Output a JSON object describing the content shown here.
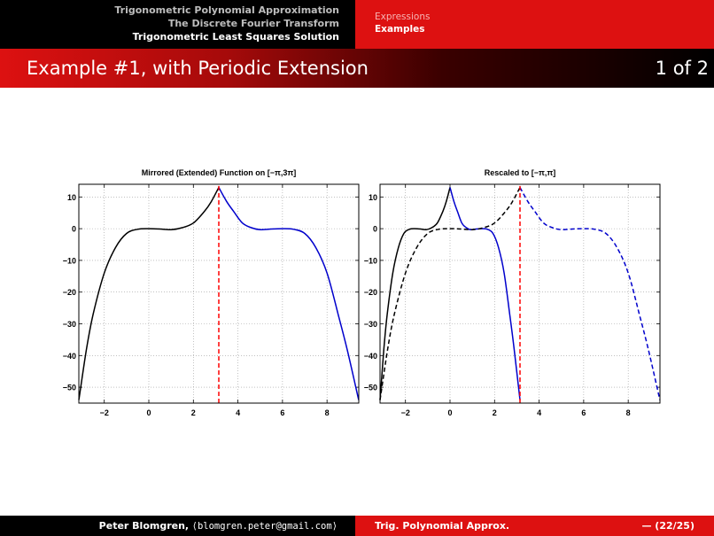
{
  "header": {
    "sections": [
      {
        "label": "Trigonometric Polynomial Approximation",
        "active": false
      },
      {
        "label": "The Discrete Fourier Transform",
        "active": false
      },
      {
        "label": "Trigonometric Least Squares Solution",
        "active": true
      }
    ],
    "subsections": [
      {
        "label": "Expressions",
        "active": false
      },
      {
        "label": "Examples",
        "active": true
      }
    ]
  },
  "frame": {
    "title": "Example #1, with Periodic Extension",
    "page": "1 of 2"
  },
  "footer": {
    "author_name": "Peter Blomgren,",
    "author_email": "⟨blomgren.peter@gmail.com⟩",
    "short_title": "Trig. Polynomial Approx.",
    "slide_number": "— (22/25)"
  },
  "colors": {
    "theme_red": "#dd1111",
    "curve_black": "#000000",
    "curve_blue": "#0000cc",
    "marker_red": "#ff0000"
  },
  "chart_data": [
    {
      "type": "line",
      "title": "Mirrored (Extended) Function on [−π,3π]",
      "xlim": [
        -3.1416,
        9.4248
      ],
      "ylim": [
        -55,
        14
      ],
      "xticks": [
        -2,
        0,
        2,
        4,
        6,
        8
      ],
      "yticks": [
        10,
        0,
        -10,
        -20,
        -30,
        -40,
        -50
      ],
      "xticklabels": [
        "−2",
        "0",
        "2",
        "4",
        "6",
        "8"
      ],
      "yticklabels": [
        "10",
        "0",
        "−10",
        "−20",
        "−30",
        "−40",
        "−50"
      ],
      "grid": true,
      "series": [
        {
          "color": "#000000",
          "style": "solid",
          "x": [
            -3.14,
            -2.8,
            -2.5,
            -2.0,
            -1.5,
            -1.0,
            -0.5,
            0,
            0.5,
            1.0,
            1.5,
            2.0,
            2.5,
            2.8,
            3.14
          ],
          "y": [
            -54,
            -38,
            -27,
            -14,
            -6,
            -1.5,
            -0.2,
            0,
            -0.1,
            -0.3,
            0.3,
            1.8,
            5.5,
            8.5,
            13
          ]
        },
        {
          "color": "#0000cc",
          "style": "solid",
          "x": [
            3.14,
            3.5,
            3.8,
            4.2,
            4.6,
            5.0,
            5.5,
            6.0,
            6.5,
            7.0,
            7.5,
            8.0,
            8.5,
            8.9,
            9.42
          ],
          "y": [
            13,
            8.5,
            5.5,
            1.8,
            0.3,
            -0.3,
            -0.1,
            0,
            -0.2,
            -1.5,
            -6,
            -14,
            -27,
            -38,
            -54
          ]
        },
        {
          "color": "#ff0000",
          "style": "dashed",
          "x": [
            3.14,
            3.14
          ],
          "y": [
            -55,
            14
          ]
        }
      ]
    },
    {
      "type": "line",
      "title": "Rescaled to [−π,π]",
      "xlim": [
        -3.1416,
        9.4248
      ],
      "ylim": [
        -55,
        14
      ],
      "xticks": [
        -2,
        0,
        2,
        4,
        6,
        8
      ],
      "yticks": [
        10,
        0,
        -10,
        -20,
        -30,
        -40,
        -50
      ],
      "xticklabels": [
        "−2",
        "0",
        "2",
        "4",
        "6",
        "8"
      ],
      "yticklabels": [
        "10",
        "0",
        "−10",
        "−20",
        "−30",
        "−40",
        "−50"
      ],
      "grid": true,
      "series": [
        {
          "color": "#000000",
          "style": "solid",
          "x": [
            -3.14,
            -2.97,
            -2.82,
            -2.57,
            -2.32,
            -2.07,
            -1.82,
            -1.57,
            -1.32,
            -1.07,
            -0.82,
            -0.57,
            -0.32,
            -0.17,
            0
          ],
          "y": [
            -54,
            -38,
            -27,
            -14,
            -6,
            -1.5,
            -0.2,
            0,
            -0.1,
            -0.3,
            0.3,
            1.8,
            5.5,
            8.5,
            13
          ]
        },
        {
          "color": "#0000cc",
          "style": "solid",
          "x": [
            0,
            0.18,
            0.33,
            0.53,
            0.73,
            0.93,
            1.18,
            1.43,
            1.68,
            1.93,
            2.18,
            2.43,
            2.68,
            2.88,
            3.14
          ],
          "y": [
            13,
            8.5,
            5.5,
            1.8,
            0.3,
            -0.3,
            -0.1,
            0,
            -0.2,
            -1.5,
            -6,
            -14,
            -27,
            -38,
            -54
          ]
        },
        {
          "color": "#000000",
          "style": "dashed",
          "x": [
            -3.14,
            -2.8,
            -2.5,
            -2.0,
            -1.5,
            -1.0,
            -0.5,
            0,
            0.5,
            1.0,
            1.5,
            2.0,
            2.5,
            2.8,
            3.14
          ],
          "y": [
            -54,
            -38,
            -27,
            -14,
            -6,
            -1.5,
            -0.2,
            0,
            -0.1,
            -0.3,
            0.3,
            1.8,
            5.5,
            8.5,
            13
          ]
        },
        {
          "color": "#0000cc",
          "style": "dashed",
          "x": [
            3.14,
            3.5,
            3.8,
            4.2,
            4.6,
            5.0,
            5.5,
            6.0,
            6.5,
            7.0,
            7.5,
            8.0,
            8.5,
            8.9,
            9.42
          ],
          "y": [
            13,
            8.5,
            5.5,
            1.8,
            0.3,
            -0.3,
            -0.1,
            0,
            -0.2,
            -1.5,
            -6,
            -14,
            -27,
            -38,
            -54
          ]
        },
        {
          "color": "#ff0000",
          "style": "dashed",
          "x": [
            3.14,
            3.14
          ],
          "y": [
            -55,
            14
          ]
        }
      ]
    }
  ]
}
